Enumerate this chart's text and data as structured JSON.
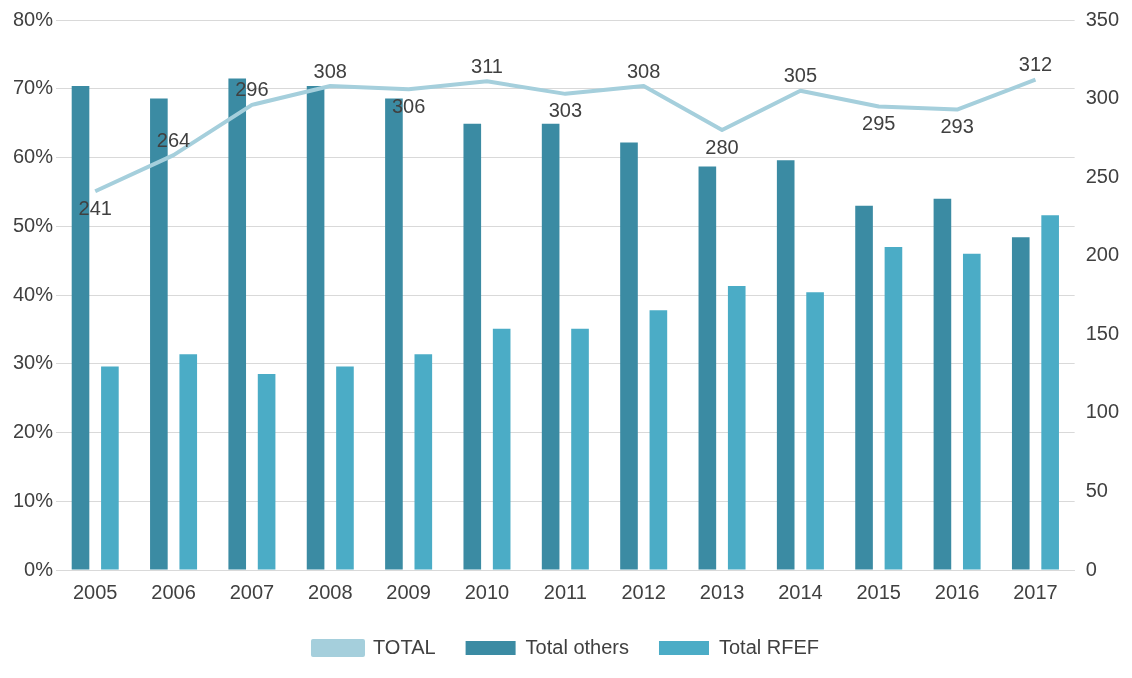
{
  "chart_data": {
    "type": "bar",
    "categories": [
      "2005",
      "2006",
      "2007",
      "2008",
      "2009",
      "2010",
      "2011",
      "2012",
      "2013",
      "2014",
      "2015",
      "2016",
      "2017"
    ],
    "series": [
      {
        "name": "Total others",
        "color": "#3b8ba3",
        "values": [
          70.4,
          68.6,
          71.5,
          70.4,
          68.6,
          64.9,
          64.9,
          62.2,
          58.7,
          59.6,
          53,
          54,
          48.4
        ]
      },
      {
        "name": "Total RFEF",
        "color": "#4bacc6",
        "values": [
          29.6,
          31.4,
          28.5,
          29.6,
          31.4,
          35.1,
          35.1,
          37.8,
          41.3,
          40.4,
          47,
          46,
          51.6
        ]
      },
      {
        "name": "TOTAL",
        "type": "line",
        "axis": "y2",
        "color": "#a5cfdc",
        "values": [
          241,
          264,
          296,
          308,
          306,
          311,
          303,
          308,
          280,
          305,
          295,
          293,
          312
        ],
        "value_labels": [
          "241",
          "264",
          "296",
          "308",
          "306",
          "311",
          "303",
          "308",
          "280",
          "305",
          "295",
          "293",
          "312"
        ]
      }
    ],
    "ylim": [
      0,
      80
    ],
    "yticks": [
      {
        "value": 0,
        "label": "0%"
      },
      {
        "value": 10,
        "label": "10%"
      },
      {
        "value": 20,
        "label": "20%"
      },
      {
        "value": 30,
        "label": "30%"
      },
      {
        "value": 40,
        "label": "40%"
      },
      {
        "value": 50,
        "label": "50%"
      },
      {
        "value": 60,
        "label": "60%"
      },
      {
        "value": 70,
        "label": "70%"
      },
      {
        "value": 80,
        "label": "80%"
      }
    ],
    "y2lim": [
      0,
      350
    ],
    "y2ticks": [
      0,
      50,
      100,
      150,
      200,
      250,
      300,
      350
    ],
    "grid": "y",
    "legend": "bottom",
    "marker": "none"
  }
}
